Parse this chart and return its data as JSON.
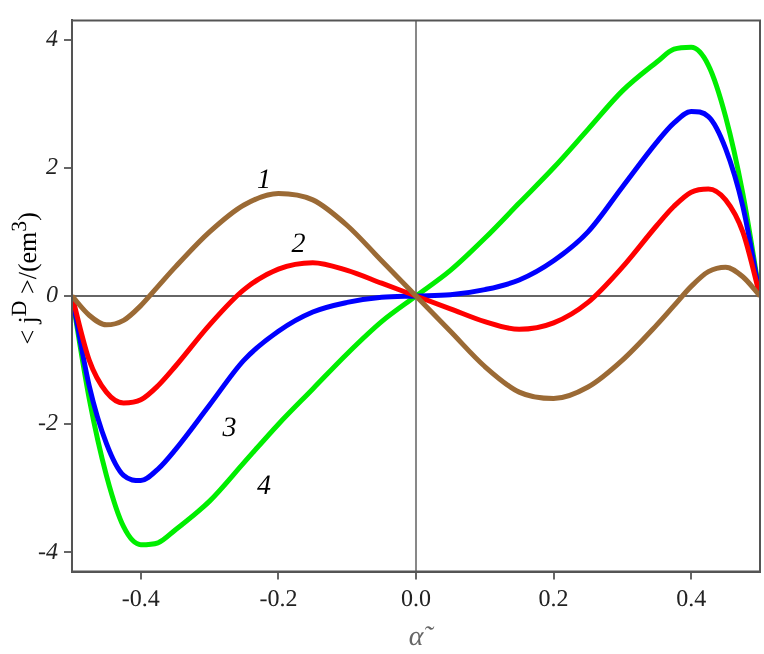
{
  "chart_data": {
    "type": "line",
    "xlabel": "α̃",
    "ylabel": "< j$^{D}$ >/(em$^{3}$)",
    "x": [
      -0.5,
      -0.475,
      -0.45,
      -0.425,
      -0.4,
      -0.375,
      -0.35,
      -0.3,
      -0.25,
      -0.2,
      -0.15,
      -0.1,
      -0.05,
      0,
      0.05,
      0.1,
      0.15,
      0.2,
      0.25,
      0.3,
      0.35,
      0.375,
      0.4,
      0.425,
      0.45,
      0.475,
      0.5
    ],
    "series": [
      {
        "color": "#9b6a35",
        "values": [
          0,
          -0.3,
          -0.45,
          -0.38,
          -0.15,
          0.15,
          0.45,
          1.0,
          1.42,
          1.6,
          1.5,
          1.1,
          0.55,
          0,
          -0.55,
          -1.1,
          -1.5,
          -1.6,
          -1.42,
          -1.0,
          -0.45,
          -0.15,
          0.15,
          0.38,
          0.45,
          0.3,
          0
        ]
      },
      {
        "color": "#ff0000",
        "values": [
          0,
          -1.0,
          -1.5,
          -1.67,
          -1.62,
          -1.4,
          -1.1,
          -0.45,
          0.1,
          0.42,
          0.52,
          0.4,
          0.2,
          0,
          -0.2,
          -0.4,
          -0.52,
          -0.42,
          -0.1,
          0.45,
          1.1,
          1.4,
          1.62,
          1.67,
          1.5,
          1.0,
          0
        ]
      },
      {
        "color": "#0000ff",
        "values": [
          0,
          -1.4,
          -2.3,
          -2.8,
          -2.88,
          -2.7,
          -2.4,
          -1.7,
          -1.0,
          -0.55,
          -0.25,
          -0.1,
          -0.02,
          0,
          0.02,
          0.1,
          0.25,
          0.55,
          1.0,
          1.7,
          2.4,
          2.7,
          2.88,
          2.8,
          2.3,
          1.4,
          0
        ]
      },
      {
        "color": "#00ee00",
        "values": [
          0,
          -1.6,
          -2.8,
          -3.6,
          -3.88,
          -3.85,
          -3.65,
          -3.2,
          -2.6,
          -2.0,
          -1.45,
          -0.9,
          -0.4,
          0,
          0.4,
          0.9,
          1.45,
          2.0,
          2.6,
          3.2,
          3.65,
          3.85,
          3.88,
          3.6,
          2.8,
          1.6,
          0
        ]
      }
    ],
    "xlim": [
      -0.5,
      0.5
    ],
    "xticks": [
      {
        "value": -0.4,
        "label": "-0.4"
      },
      {
        "value": -0.2,
        "label": "-0.2"
      },
      {
        "value": 0,
        "label": "0.0"
      },
      {
        "value": 0.2,
        "label": "0.2"
      },
      {
        "value": 0.4,
        "label": "0.4"
      }
    ],
    "ylim": [
      -4.3,
      4.3
    ],
    "yticks": [
      -4,
      -2,
      0,
      2,
      4
    ],
    "ref_lines": [
      {
        "axis": "x",
        "value": 0,
        "color": "#888888"
      },
      {
        "axis": "y",
        "value": 0,
        "color": "#666666"
      }
    ],
    "annotations": [
      {
        "text": "1",
        "x": -0.25,
        "y": 1.42
      },
      {
        "text": "2",
        "x": -0.2,
        "y": 0.42
      },
      {
        "text": "3",
        "x": -0.3,
        "y": -1.7
      },
      {
        "text": "4",
        "x": -0.25,
        "y": -2.6
      }
    ],
    "grid": false,
    "legend": false,
    "marker": "none",
    "line_style": "solid"
  }
}
